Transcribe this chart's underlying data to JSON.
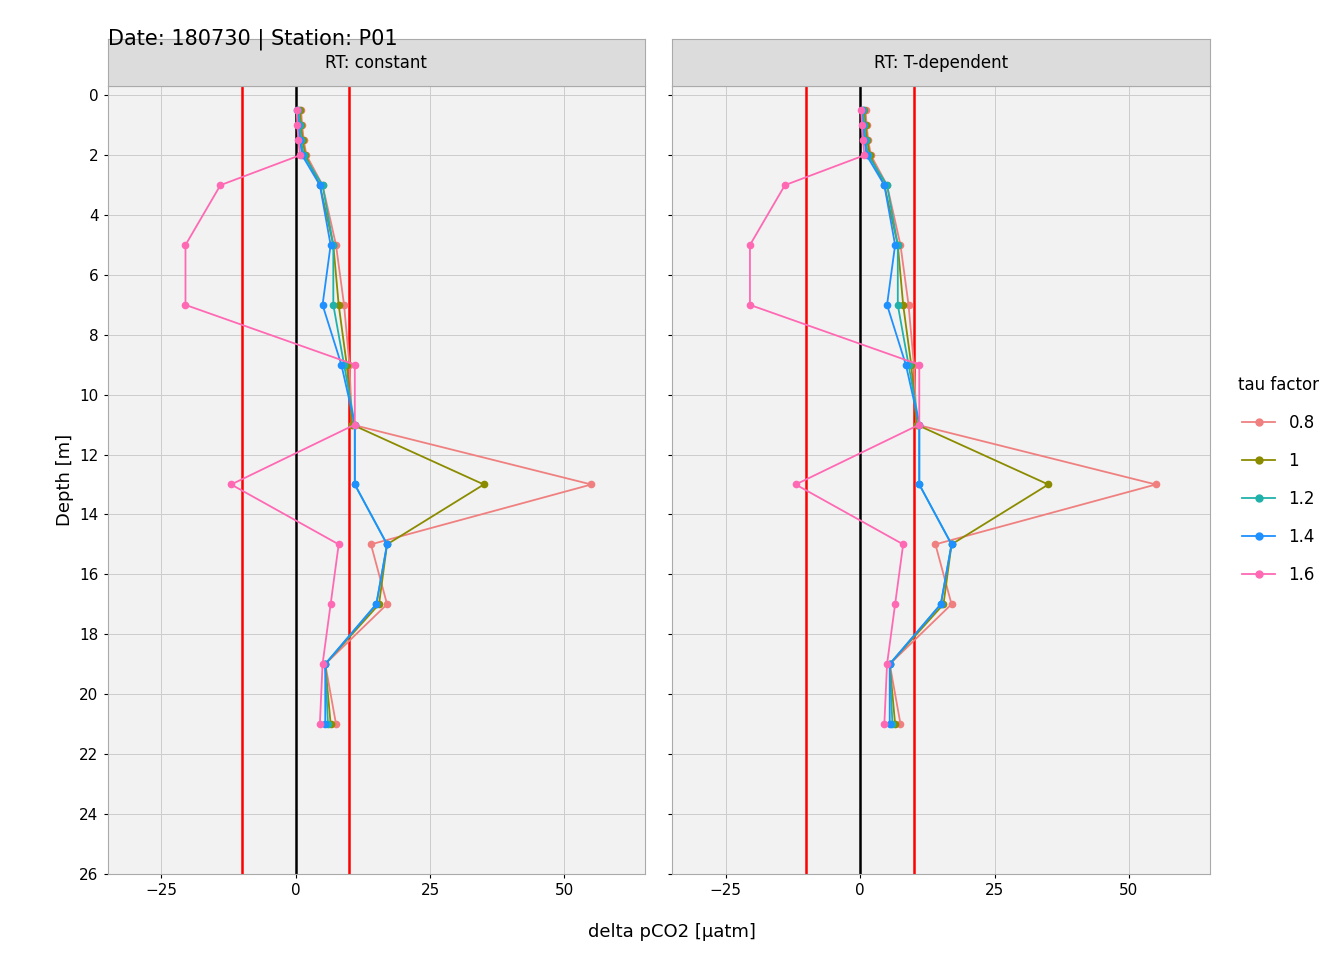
{
  "title": "Date: 180730 | Station: P01",
  "panel_labels": [
    "RT: constant",
    "RT: T-dependent"
  ],
  "xlabel": "delta pCO2 [µatm]",
  "ylabel": "Depth [m]",
  "ylim": [
    26,
    -0.3
  ],
  "xlim": [
    -35,
    65
  ],
  "xticks": [
    -25,
    0,
    25,
    50
  ],
  "yticks": [
    0,
    2,
    4,
    6,
    8,
    10,
    12,
    14,
    16,
    18,
    20,
    22,
    24,
    26
  ],
  "vline_black": 0,
  "vlines_red": [
    -10,
    10
  ],
  "tau_factors": [
    "0.8",
    "1",
    "1.2",
    "1.4",
    "1.6"
  ],
  "colors": {
    "0.8": "#F08080",
    "1": "#8B8B00",
    "1.2": "#20B2AA",
    "1.4": "#1E90FF",
    "1.6": "#FF69B4"
  },
  "depths": [
    0.5,
    1.0,
    1.5,
    2.0,
    3.0,
    5.0,
    7.0,
    9.0,
    11.0,
    13.0,
    15.0,
    17.0,
    19.0,
    21.0
  ],
  "constant": {
    "0.8": [
      1.0,
      1.2,
      1.5,
      2.0,
      5.0,
      7.5,
      9.0,
      10.0,
      11.0,
      55.0,
      15.0,
      17.0,
      5.5,
      7.5
    ],
    "1": [
      1.0,
      1.2,
      1.5,
      2.0,
      4.8,
      7.2,
      8.5,
      9.5,
      11.0,
      35.0,
      17.0,
      15.5,
      5.5,
      6.5
    ],
    "1.2": [
      1.0,
      1.2,
      1.5,
      2.0,
      5.0,
      7.0,
      7.5,
      9.0,
      11.5,
      11.5,
      17.0,
      15.0,
      5.5,
      6.0
    ],
    "1.4": [
      1.0,
      1.2,
      1.5,
      2.0,
      4.5,
      6.5,
      5.0,
      8.5,
      11.5,
      11.5,
      17.0,
      15.0,
      5.5,
      5.5
    ],
    "1.6": [
      1.0,
      1.2,
      1.5,
      2.0,
      -15.0,
      -20.0,
      -21.0,
      11.5,
      11.0,
      -12.0,
      8.5,
      7.0,
      5.5,
      4.5
    ]
  },
  "t_dependent": {
    "0.8": [
      1.0,
      1.2,
      1.5,
      2.0,
      5.0,
      7.5,
      9.0,
      10.0,
      11.0,
      55.0,
      15.0,
      17.0,
      5.5,
      7.5
    ],
    "1": [
      1.0,
      1.2,
      1.5,
      2.0,
      4.8,
      7.2,
      8.5,
      9.5,
      11.0,
      35.0,
      17.0,
      15.5,
      5.5,
      6.5
    ],
    "1.2": [
      1.0,
      1.2,
      1.5,
      2.0,
      5.0,
      7.0,
      7.5,
      9.0,
      11.5,
      11.5,
      17.0,
      15.0,
      5.5,
      6.0
    ],
    "1.4": [
      1.0,
      1.2,
      1.5,
      2.0,
      4.5,
      6.5,
      5.0,
      8.5,
      11.5,
      11.5,
      17.0,
      15.0,
      5.5,
      5.5
    ],
    "1.6": [
      1.0,
      1.2,
      1.5,
      2.0,
      -15.0,
      -20.0,
      -21.0,
      11.5,
      11.0,
      -12.0,
      8.5,
      7.0,
      5.5,
      4.5
    ]
  },
  "background_color": "#ffffff",
  "panel_header_color": "#DCDCDC",
  "panel_bg": "#F2F2F2",
  "grid_color": "#CCCCCC",
  "spine_color": "#AAAAAA"
}
